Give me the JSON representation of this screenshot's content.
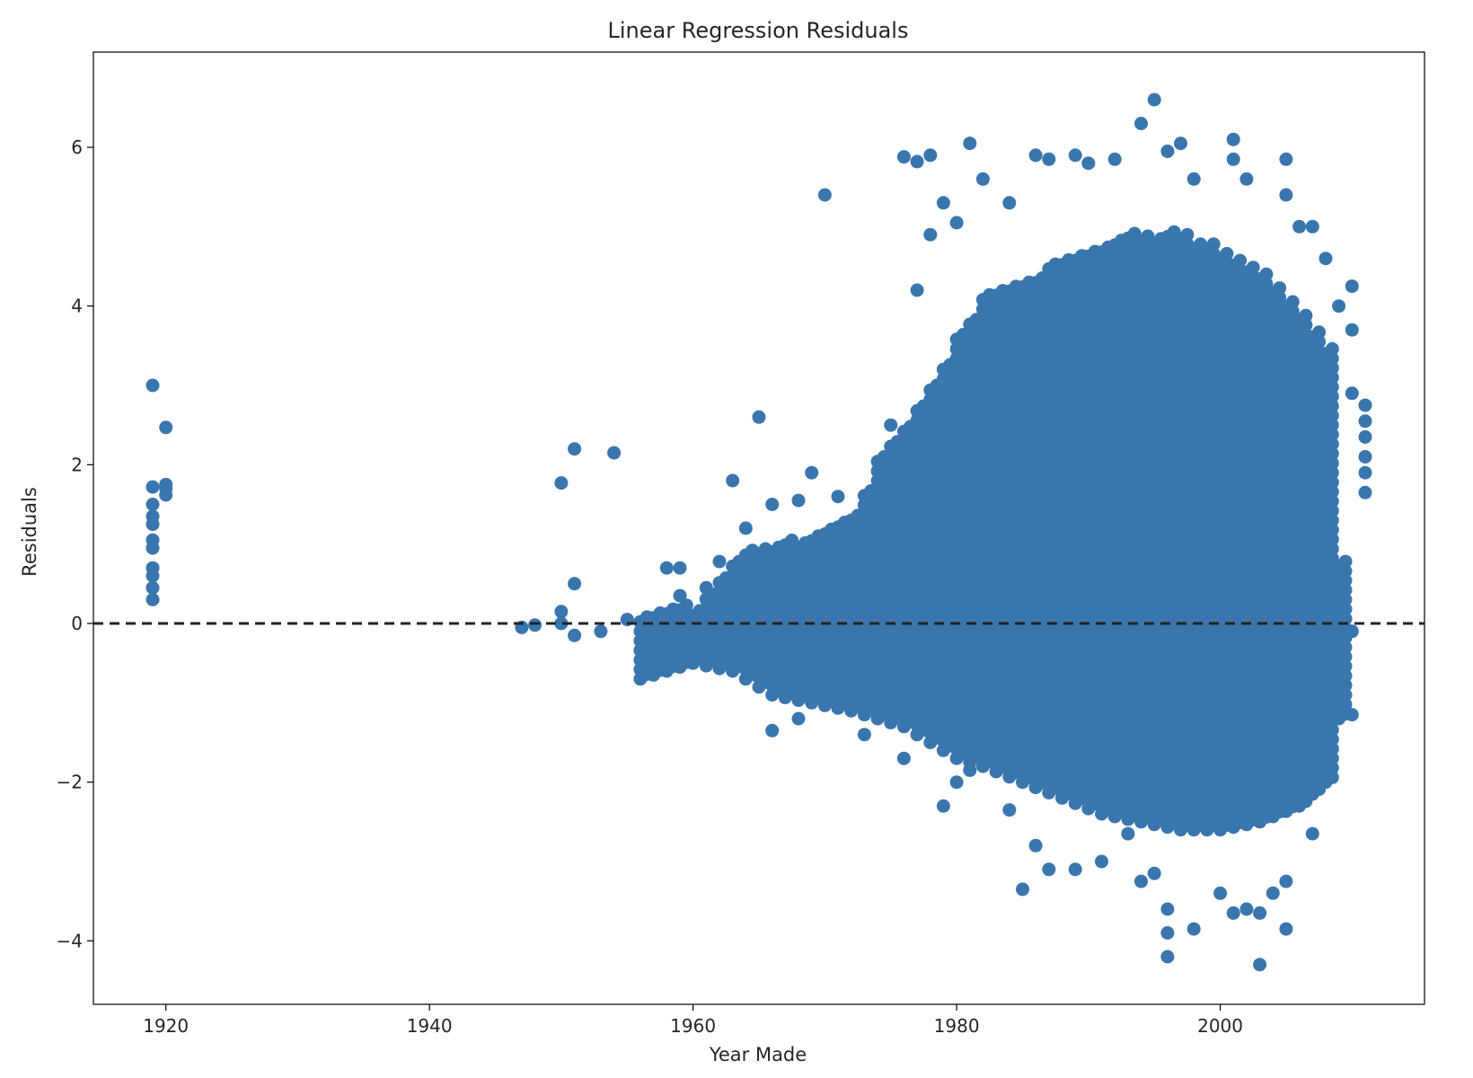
{
  "chart_data": {
    "type": "scatter",
    "title": "Linear Regression Residuals",
    "xlabel": "Year Made",
    "ylabel": "Residuals",
    "xlim": [
      1914.5,
      2015.5
    ],
    "ylim": [
      -4.8,
      7.2
    ],
    "x_ticks": [
      1920,
      1940,
      1960,
      1980,
      2000
    ],
    "y_ticks": [
      -4,
      -2,
      0,
      2,
      4,
      6
    ],
    "x_tick_labels": [
      "1920",
      "1940",
      "1960",
      "1980",
      "2000"
    ],
    "y_tick_labels": [
      "−4",
      "−2",
      "0",
      "2",
      "4",
      "6"
    ],
    "grid": false,
    "legend": "none",
    "marker_color": "#3a76ae",
    "reference_line": {
      "y": 0,
      "style": "dashed",
      "color": "#222222"
    },
    "spread_by_year": [
      {
        "year": 1919,
        "min": 0.3,
        "max": 1.7
      },
      {
        "year": 1920,
        "min": 1.6,
        "max": 1.7
      },
      {
        "year": 1950,
        "min": 0.0,
        "max": 0.15
      },
      {
        "year": 1956,
        "min": -0.7,
        "max": 0.1
      },
      {
        "year": 1960,
        "min": -0.5,
        "max": 0.2
      },
      {
        "year": 1963,
        "min": -0.6,
        "max": 0.8
      },
      {
        "year": 1966,
        "min": -0.9,
        "max": 1.0
      },
      {
        "year": 1969,
        "min": -1.0,
        "max": 1.1
      },
      {
        "year": 1972,
        "min": -1.1,
        "max": 1.3
      },
      {
        "year": 1974,
        "min": -1.2,
        "max": 2.1
      },
      {
        "year": 1976,
        "min": -1.3,
        "max": 2.5
      },
      {
        "year": 1978,
        "min": -1.5,
        "max": 3.0
      },
      {
        "year": 1980,
        "min": -1.7,
        "max": 3.6
      },
      {
        "year": 1982,
        "min": -1.8,
        "max": 4.1
      },
      {
        "year": 1985,
        "min": -2.0,
        "max": 4.3
      },
      {
        "year": 1988,
        "min": -2.2,
        "max": 4.6
      },
      {
        "year": 1991,
        "min": -2.4,
        "max": 4.8
      },
      {
        "year": 1994,
        "min": -2.5,
        "max": 4.9
      },
      {
        "year": 1997,
        "min": -2.6,
        "max": 4.9
      },
      {
        "year": 2000,
        "min": -2.6,
        "max": 4.7
      },
      {
        "year": 2003,
        "min": -2.5,
        "max": 4.4
      },
      {
        "year": 2006,
        "min": -2.3,
        "max": 3.9
      },
      {
        "year": 2008,
        "min": -2.0,
        "max": 3.5
      },
      {
        "year": 2009,
        "min": -1.2,
        "max": 0.8
      }
    ],
    "outlier_points": [
      {
        "x": 1919,
        "y": 3.0
      },
      {
        "x": 1920,
        "y": 2.47
      },
      {
        "x": 1920,
        "y": 1.75
      },
      {
        "x": 1950,
        "y": 1.77
      },
      {
        "x": 1951,
        "y": 2.2
      },
      {
        "x": 1951,
        "y": 0.5
      },
      {
        "x": 1951,
        "y": -0.15
      },
      {
        "x": 1954,
        "y": 2.15
      },
      {
        "x": 1953,
        "y": -0.1
      },
      {
        "x": 1947,
        "y": -0.05
      },
      {
        "x": 1948,
        "y": -0.02
      },
      {
        "x": 1955,
        "y": 0.05
      },
      {
        "x": 1958,
        "y": 0.7
      },
      {
        "x": 1959,
        "y": 0.7
      },
      {
        "x": 1959,
        "y": 0.35
      },
      {
        "x": 1961,
        "y": 0.45
      },
      {
        "x": 1962,
        "y": 0.78
      },
      {
        "x": 1963,
        "y": 1.8
      },
      {
        "x": 1964,
        "y": 1.2
      },
      {
        "x": 1965,
        "y": 2.6
      },
      {
        "x": 1966,
        "y": 1.5
      },
      {
        "x": 1968,
        "y": 1.55
      },
      {
        "x": 1969,
        "y": 1.9
      },
      {
        "x": 1970,
        "y": 5.4
      },
      {
        "x": 1971,
        "y": 1.6
      },
      {
        "x": 1966,
        "y": -1.35
      },
      {
        "x": 1968,
        "y": -1.2
      },
      {
        "x": 1973,
        "y": -1.4
      },
      {
        "x": 1976,
        "y": -1.7
      },
      {
        "x": 1976,
        "y": 5.88
      },
      {
        "x": 1977,
        "y": 5.82
      },
      {
        "x": 1978,
        "y": 5.9
      },
      {
        "x": 1979,
        "y": 5.3
      },
      {
        "x": 1981,
        "y": 6.05
      },
      {
        "x": 1979,
        "y": -2.3
      },
      {
        "x": 1980,
        "y": -2.0
      },
      {
        "x": 1981,
        "y": -1.85
      },
      {
        "x": 1984,
        "y": -2.35
      },
      {
        "x": 1985,
        "y": -3.35
      },
      {
        "x": 1986,
        "y": -2.8
      },
      {
        "x": 1987,
        "y": -3.1
      },
      {
        "x": 1989,
        "y": -3.1
      },
      {
        "x": 1991,
        "y": -3.0
      },
      {
        "x": 1993,
        "y": -2.65
      },
      {
        "x": 1994,
        "y": -3.25
      },
      {
        "x": 1995,
        "y": -3.15
      },
      {
        "x": 1996,
        "y": -4.2
      },
      {
        "x": 1996,
        "y": -3.9
      },
      {
        "x": 1996,
        "y": -3.6
      },
      {
        "x": 1998,
        "y": -3.85
      },
      {
        "x": 2000,
        "y": -3.4
      },
      {
        "x": 2001,
        "y": -3.65
      },
      {
        "x": 2002,
        "y": -3.6
      },
      {
        "x": 2003,
        "y": -3.65
      },
      {
        "x": 2003,
        "y": -4.3
      },
      {
        "x": 2004,
        "y": -3.4
      },
      {
        "x": 2005,
        "y": -3.85
      },
      {
        "x": 2005,
        "y": -3.25
      },
      {
        "x": 2007,
        "y": -2.65
      },
      {
        "x": 2009,
        "y": -1.15
      },
      {
        "x": 2010,
        "y": -1.15
      },
      {
        "x": 1986,
        "y": 5.9
      },
      {
        "x": 1987,
        "y": 5.85
      },
      {
        "x": 1989,
        "y": 5.9
      },
      {
        "x": 1990,
        "y": 5.8
      },
      {
        "x": 1992,
        "y": 5.85
      },
      {
        "x": 1994,
        "y": 6.3
      },
      {
        "x": 1995,
        "y": 6.6
      },
      {
        "x": 1997,
        "y": 6.05
      },
      {
        "x": 1996,
        "y": 5.95
      },
      {
        "x": 1998,
        "y": 5.6
      },
      {
        "x": 2001,
        "y": 6.1
      },
      {
        "x": 2001,
        "y": 5.85
      },
      {
        "x": 2002,
        "y": 5.6
      },
      {
        "x": 2005,
        "y": 5.85
      },
      {
        "x": 2005,
        "y": 5.4
      },
      {
        "x": 2006,
        "y": 5.0
      },
      {
        "x": 2007,
        "y": 5.0
      },
      {
        "x": 2008,
        "y": 4.6
      },
      {
        "x": 2010,
        "y": 4.25
      },
      {
        "x": 2010,
        "y": 3.7
      },
      {
        "x": 2010,
        "y": 2.9
      },
      {
        "x": 2011,
        "y": 2.75
      },
      {
        "x": 2011,
        "y": 2.55
      },
      {
        "x": 2011,
        "y": 2.35
      },
      {
        "x": 2011,
        "y": 2.1
      },
      {
        "x": 2011,
        "y": 1.9
      },
      {
        "x": 2011,
        "y": 1.65
      },
      {
        "x": 2010,
        "y": -0.1
      },
      {
        "x": 2009,
        "y": 4.0
      },
      {
        "x": 1975,
        "y": 2.5
      },
      {
        "x": 1977,
        "y": 4.2
      },
      {
        "x": 1978,
        "y": 4.9
      },
      {
        "x": 1980,
        "y": 5.05
      },
      {
        "x": 1982,
        "y": 5.6
      },
      {
        "x": 1984,
        "y": 5.3
      }
    ]
  }
}
